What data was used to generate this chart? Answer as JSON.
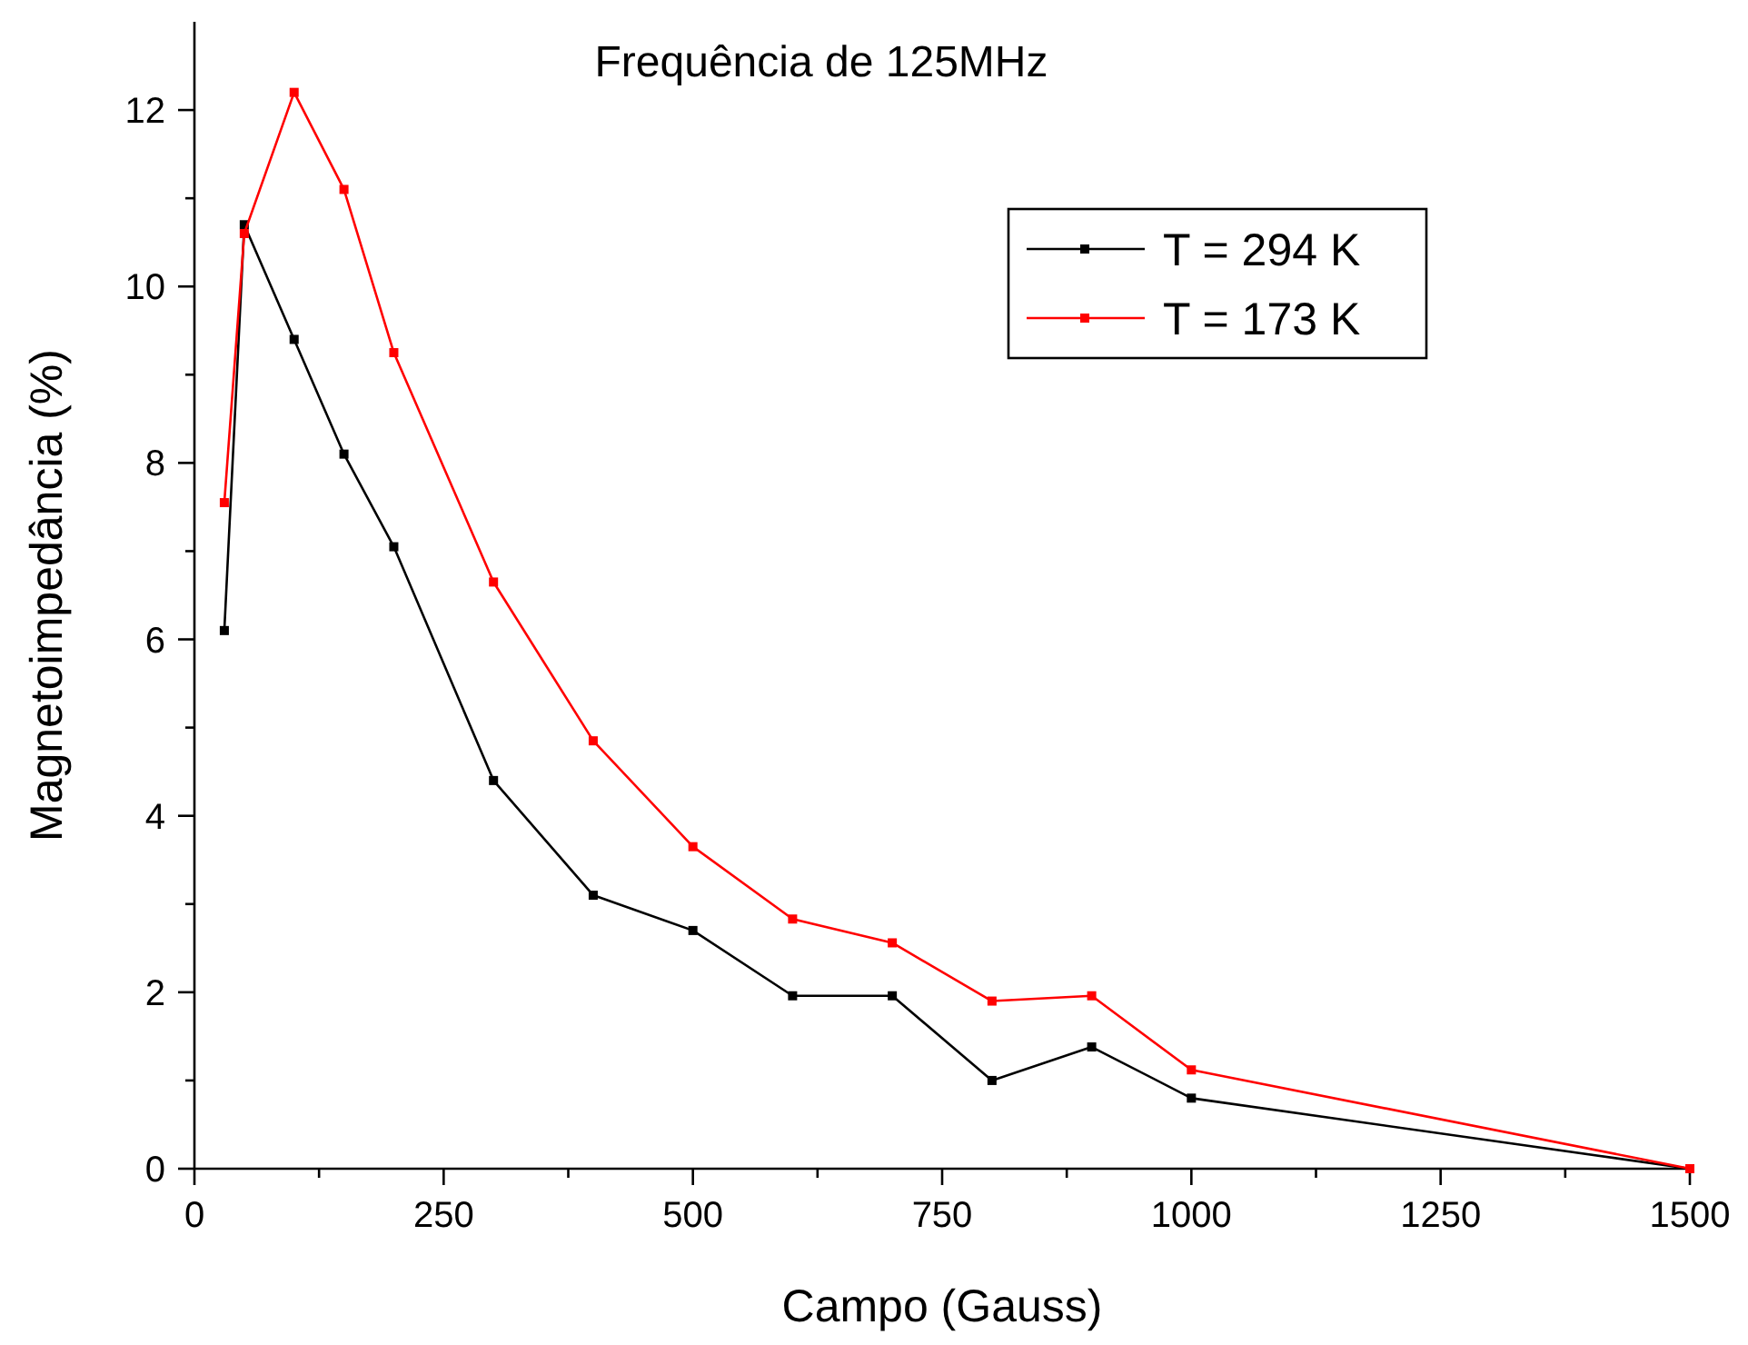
{
  "chart_data": {
    "type": "line",
    "title": "Frequência de 125MHz",
    "xlabel": "Campo (Gauss)",
    "ylabel": "Magnetoimpedância (%)",
    "x": [
      30,
      50,
      100,
      150,
      200,
      300,
      400,
      500,
      600,
      700,
      800,
      900,
      1000,
      1500
    ],
    "series": [
      {
        "name": "T = 294 K",
        "color": "#000000",
        "values": [
          6.1,
          10.7,
          9.4,
          8.1,
          7.05,
          4.4,
          3.1,
          2.7,
          1.96,
          1.96,
          1.0,
          1.38,
          0.8,
          0
        ]
      },
      {
        "name": "T = 173 K",
        "color": "#ff0000",
        "values": [
          7.55,
          10.6,
          12.2,
          11.1,
          9.25,
          6.65,
          4.85,
          3.65,
          2.83,
          2.56,
          1.9,
          1.96,
          1.12,
          0
        ]
      }
    ],
    "xlim": [
      0,
      1500
    ],
    "ylim": [
      0,
      13
    ],
    "xticks": [
      0,
      {
        "value": 125,
        "label": null
      },
      250,
      {
        "value": 375,
        "label": null
      },
      500,
      {
        "value": 625,
        "label": null
      },
      750,
      {
        "value": 875,
        "label": null
      },
      1000,
      {
        "value": 1125,
        "label": null
      },
      1250,
      {
        "value": 1375,
        "label": null
      },
      1500
    ],
    "yticks": [
      0,
      {
        "value": 1,
        "label": null
      },
      2,
      {
        "value": 3,
        "label": null
      },
      4,
      {
        "value": 5,
        "label": null
      },
      6,
      {
        "value": 7,
        "label": null
      },
      8,
      {
        "value": 9,
        "label": null
      },
      10,
      {
        "value": 11,
        "label": null
      },
      12
    ],
    "marker": "square",
    "line_style": "solid",
    "legend": "top right",
    "grid": false
  }
}
